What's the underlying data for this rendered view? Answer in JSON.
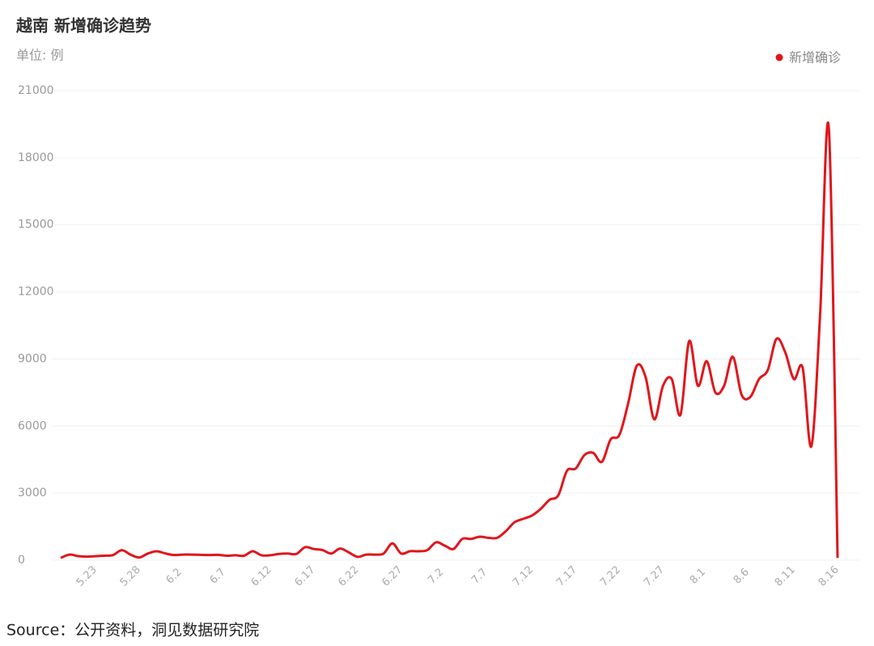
{
  "chart_data": {
    "type": "line",
    "title": "越南 新增确诊趋势",
    "subtitle": "单位: 例",
    "source": "Source：公开资料，洞见数据研究院",
    "categories": [
      null,
      null,
      null,
      "5.23",
      null,
      null,
      null,
      null,
      "5.28",
      null,
      null,
      null,
      null,
      "6.2",
      null,
      null,
      null,
      null,
      "6.7",
      null,
      null,
      null,
      null,
      "6.12",
      null,
      null,
      null,
      null,
      "6.17",
      null,
      null,
      null,
      null,
      "6.22",
      null,
      null,
      null,
      null,
      "6.27",
      null,
      null,
      null,
      null,
      "7.2",
      null,
      null,
      null,
      null,
      "7.7",
      null,
      null,
      null,
      null,
      "7.12",
      null,
      null,
      null,
      null,
      "7.17",
      null,
      null,
      null,
      null,
      "7.22",
      null,
      null,
      null,
      null,
      "7.27",
      null,
      null,
      null,
      null,
      "8.1",
      null,
      null,
      null,
      null,
      "8.6",
      null,
      null,
      null,
      null,
      "8.11",
      null,
      null,
      null,
      null,
      "8.16",
      null
    ],
    "series": [
      {
        "name": "新增确诊",
        "color": "#e0161c",
        "values": [
          100,
          250,
          180,
          160,
          180,
          200,
          230,
          450,
          250,
          120,
          300,
          400,
          300,
          230,
          250,
          250,
          240,
          230,
          240,
          200,
          220,
          200,
          400,
          220,
          220,
          280,
          300,
          280,
          580,
          500,
          450,
          300,
          520,
          350,
          150,
          250,
          250,
          300,
          750,
          300,
          400,
          400,
          450,
          800,
          650,
          500,
          950,
          950,
          1050,
          1000,
          1000,
          1300,
          1700,
          1850,
          2000,
          2300,
          2700,
          2900,
          4000,
          4100,
          4700,
          4800,
          4400,
          5400,
          5600,
          7000,
          8700,
          8200,
          6300,
          7800,
          8100,
          6500,
          9800,
          7800,
          8900,
          7500,
          7800,
          9100,
          7400,
          7300,
          8100,
          8500,
          9900,
          9300,
          8100,
          8600,
          5100,
          11000,
          19300,
          100
        ]
      }
    ],
    "ylim": [
      0,
      21000
    ],
    "yticks": [
      0,
      3000,
      6000,
      9000,
      12000,
      15000,
      18000,
      21000
    ],
    "grid": true,
    "legend": "top-right"
  }
}
